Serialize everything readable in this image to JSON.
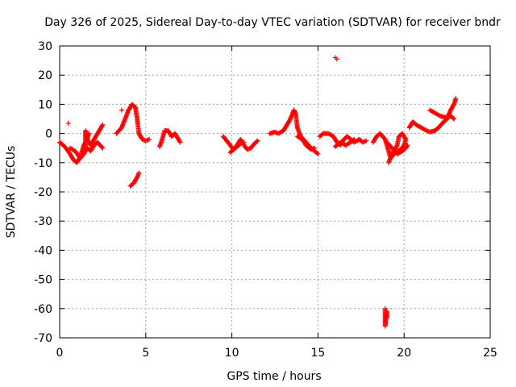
{
  "chart_data": {
    "type": "scatter",
    "title": "Day 326 of 2025, Sidereal Day-to-day VTEC variation (SDTVAR) for receiver bndr",
    "xlabel": "GPS time / hours",
    "ylabel": "SDTVAR / TECUs",
    "xlim": [
      0,
      25
    ],
    "ylim": [
      -70,
      30
    ],
    "xticks": [
      "0",
      "5",
      "10",
      "15",
      "20",
      "25"
    ],
    "yticks": [
      "30",
      "20",
      "10",
      "0",
      "-10",
      "-20",
      "-30",
      "-40",
      "-50",
      "-60",
      "-70"
    ],
    "grid": true,
    "marker": "+",
    "series": [
      {
        "name": "SDTVAR",
        "color": "#ff0000",
        "segments": [
          [
            [
              0.0,
              -3.0
            ],
            [
              0.3,
              -4.5
            ],
            [
              0.6,
              -7.0
            ],
            [
              0.8,
              -9.0
            ],
            [
              1.0,
              -10.0
            ],
            [
              1.2,
              -8.0
            ],
            [
              1.4,
              -4.0
            ],
            [
              1.6,
              -2.0
            ],
            [
              1.8,
              -4.0
            ],
            [
              2.0,
              -2.0
            ],
            [
              2.2,
              0.0
            ],
            [
              2.4,
              2.0
            ],
            [
              2.5,
              3.0
            ]
          ],
          [
            [
              0.6,
              -5.0
            ],
            [
              0.9,
              -6.0
            ],
            [
              1.2,
              -8.5
            ],
            [
              1.4,
              -7.0
            ],
            [
              1.6,
              -5.0
            ],
            [
              1.8,
              -6.0
            ],
            [
              2.0,
              -4.0
            ],
            [
              2.2,
              -3.0
            ],
            [
              2.5,
              -5.0
            ]
          ],
          [
            [
              1.5,
              -5.0
            ],
            [
              1.5,
              -3.0
            ],
            [
              1.5,
              -1.0
            ],
            [
              1.5,
              1.0
            ],
            [
              1.6,
              -2.0
            ],
            [
              1.7,
              0.0
            ]
          ],
          [
            [
              3.3,
              0.0
            ],
            [
              3.6,
              2.0
            ],
            [
              3.8,
              5.0
            ],
            [
              4.0,
              8.0
            ],
            [
              4.2,
              10.0
            ],
            [
              4.4,
              9.0
            ],
            [
              4.5,
              5.0
            ],
            [
              4.6,
              0.0
            ],
            [
              4.8,
              -2.0
            ],
            [
              5.0,
              -2.5
            ],
            [
              5.2,
              -2.0
            ]
          ],
          [
            [
              4.1,
              -18.0
            ],
            [
              4.3,
              -17.0
            ],
            [
              4.5,
              -15.0
            ],
            [
              4.6,
              -13.5
            ]
          ],
          [
            [
              5.8,
              -4.5
            ],
            [
              5.9,
              -3.0
            ],
            [
              6.0,
              -1.0
            ],
            [
              6.1,
              1.0
            ],
            [
              6.3,
              1.0
            ],
            [
              6.5,
              -1.0
            ],
            [
              6.7,
              0.0
            ],
            [
              6.9,
              -2.0
            ],
            [
              7.0,
              -3.0
            ]
          ],
          [
            [
              9.5,
              -1.0
            ],
            [
              9.7,
              -2.5
            ],
            [
              9.9,
              -4.0
            ],
            [
              10.1,
              -5.5
            ],
            [
              10.3,
              -4.0
            ],
            [
              10.5,
              -2.0
            ],
            [
              10.7,
              -4.0
            ],
            [
              10.9,
              -5.5
            ],
            [
              11.1,
              -5.0
            ],
            [
              11.3,
              -3.5
            ],
            [
              11.5,
              -2.5
            ]
          ],
          [
            [
              9.9,
              -6.5
            ],
            [
              10.2,
              -5.0
            ],
            [
              10.5,
              -3.5
            ],
            [
              10.7,
              -3.0
            ]
          ],
          [
            [
              12.2,
              0.0
            ],
            [
              12.5,
              0.5
            ],
            [
              12.7,
              0.0
            ],
            [
              13.0,
              1.0
            ],
            [
              13.2,
              3.0
            ],
            [
              13.4,
              5.0
            ],
            [
              13.6,
              8.0
            ],
            [
              13.7,
              7.0
            ],
            [
              13.8,
              2.0
            ],
            [
              14.0,
              -1.0
            ],
            [
              14.3,
              -3.0
            ],
            [
              14.6,
              -5.0
            ],
            [
              14.8,
              -6.0
            ],
            [
              15.0,
              -7.0
            ]
          ],
          [
            [
              13.8,
              -1.0
            ],
            [
              14.1,
              -2.0
            ],
            [
              14.3,
              -4.0
            ],
            [
              14.6,
              -5.5
            ],
            [
              14.8,
              -5.0
            ]
          ],
          [
            [
              15.1,
              -1.0
            ],
            [
              15.3,
              0.0
            ],
            [
              15.6,
              0.0
            ],
            [
              15.9,
              -1.0
            ],
            [
              16.1,
              -3.0
            ],
            [
              16.3,
              -4.0
            ],
            [
              16.5,
              -2.0
            ],
            [
              16.7,
              -1.0
            ],
            [
              16.9,
              -2.0
            ],
            [
              17.1,
              -3.0
            ],
            [
              17.4,
              -2.0
            ],
            [
              17.6,
              -3.0
            ],
            [
              17.8,
              -2.5
            ]
          ],
          [
            [
              16.0,
              -4.5
            ],
            [
              16.3,
              -3.0
            ],
            [
              16.6,
              -4.0
            ],
            [
              16.9,
              -3.0
            ],
            [
              17.1,
              -2.0
            ]
          ],
          [
            [
              18.2,
              -3.0
            ],
            [
              18.4,
              -1.0
            ],
            [
              18.6,
              0.0
            ],
            [
              18.9,
              -2.0
            ],
            [
              19.1,
              -6.0
            ],
            [
              19.2,
              -8.0
            ],
            [
              19.4,
              -6.0
            ],
            [
              19.6,
              -4.0
            ],
            [
              19.7,
              -1.0
            ],
            [
              19.9,
              0.0
            ],
            [
              20.1,
              -2.0
            ],
            [
              20.0,
              -4.0
            ],
            [
              19.8,
              -5.5
            ],
            [
              19.5,
              -6.5
            ],
            [
              19.2,
              -8.5
            ],
            [
              19.1,
              -10.0
            ]
          ],
          [
            [
              19.0,
              -3.0
            ],
            [
              19.3,
              -5.0
            ],
            [
              19.6,
              -7.0
            ],
            [
              19.9,
              -6.0
            ],
            [
              20.1,
              -5.0
            ],
            [
              20.2,
              -4.0
            ]
          ],
          [
            [
              20.3,
              2.0
            ],
            [
              20.5,
              4.0
            ],
            [
              20.7,
              3.0
            ],
            [
              21.0,
              2.0
            ],
            [
              21.3,
              1.0
            ],
            [
              21.5,
              0.5
            ],
            [
              21.8,
              1.0
            ],
            [
              22.0,
              2.0
            ],
            [
              22.3,
              4.0
            ],
            [
              22.5,
              5.0
            ],
            [
              22.7,
              8.0
            ],
            [
              22.9,
              10.0
            ],
            [
              23.0,
              12.0
            ]
          ],
          [
            [
              21.5,
              8.0
            ],
            [
              21.8,
              7.0
            ],
            [
              22.1,
              6.0
            ],
            [
              22.4,
              5.5
            ],
            [
              22.7,
              6.0
            ],
            [
              22.9,
              5.0
            ]
          ],
          [
            [
              18.9,
              -60.0
            ],
            [
              18.9,
              -62.0
            ],
            [
              18.9,
              -64.0
            ],
            [
              18.9,
              -66.0
            ],
            [
              19.0,
              -61.0
            ],
            [
              19.0,
              -63.0
            ]
          ]
        ],
        "isolated": [
          [
            0.5,
            3.5
          ],
          [
            3.6,
            8.0
          ],
          [
            16.0,
            26.0
          ],
          [
            16.1,
            25.5
          ]
        ]
      }
    ]
  }
}
